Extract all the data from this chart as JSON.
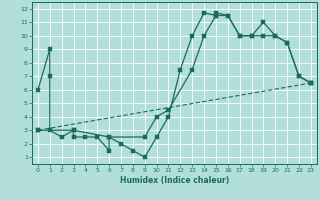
{
  "xlabel": "Humidex (Indice chaleur)",
  "bg_color": "#b2dfdb",
  "grid_color": "#ffffff",
  "line_color": "#1a6b5a",
  "xlim": [
    -0.5,
    23.5
  ],
  "ylim": [
    0.5,
    12.5
  ],
  "xticks": [
    0,
    1,
    2,
    3,
    4,
    5,
    6,
    7,
    8,
    9,
    10,
    11,
    12,
    13,
    14,
    15,
    16,
    17,
    18,
    19,
    20,
    21,
    22,
    23
  ],
  "yticks": [
    1,
    2,
    3,
    4,
    5,
    6,
    7,
    8,
    9,
    10,
    11,
    12
  ],
  "line1_x": [
    0,
    1,
    1,
    1,
    2,
    3,
    3,
    4,
    5,
    6,
    6,
    7,
    8,
    9,
    10,
    11,
    12,
    13,
    14,
    15,
    15,
    16,
    17,
    18,
    19,
    20,
    21,
    22,
    23
  ],
  "line1_y": [
    6,
    9,
    7,
    3,
    2.5,
    3,
    2.5,
    2.5,
    2.5,
    1.5,
    2.5,
    2,
    1.5,
    1,
    2.5,
    4,
    7.5,
    10,
    11.7,
    11.5,
    11.7,
    11.5,
    10,
    10,
    11,
    10,
    9.5,
    7,
    6.5
  ],
  "line2_x": [
    0,
    3,
    6,
    9,
    10,
    11,
    13,
    14,
    15,
    16,
    17,
    18,
    19,
    20,
    21,
    22,
    23
  ],
  "line2_y": [
    3,
    3,
    2.5,
    2.5,
    4,
    4.5,
    7.5,
    10,
    11.5,
    11.5,
    10,
    10,
    10,
    10,
    9.5,
    7,
    6.5
  ],
  "line3_x": [
    0,
    23
  ],
  "line3_y": [
    3,
    6.5
  ]
}
